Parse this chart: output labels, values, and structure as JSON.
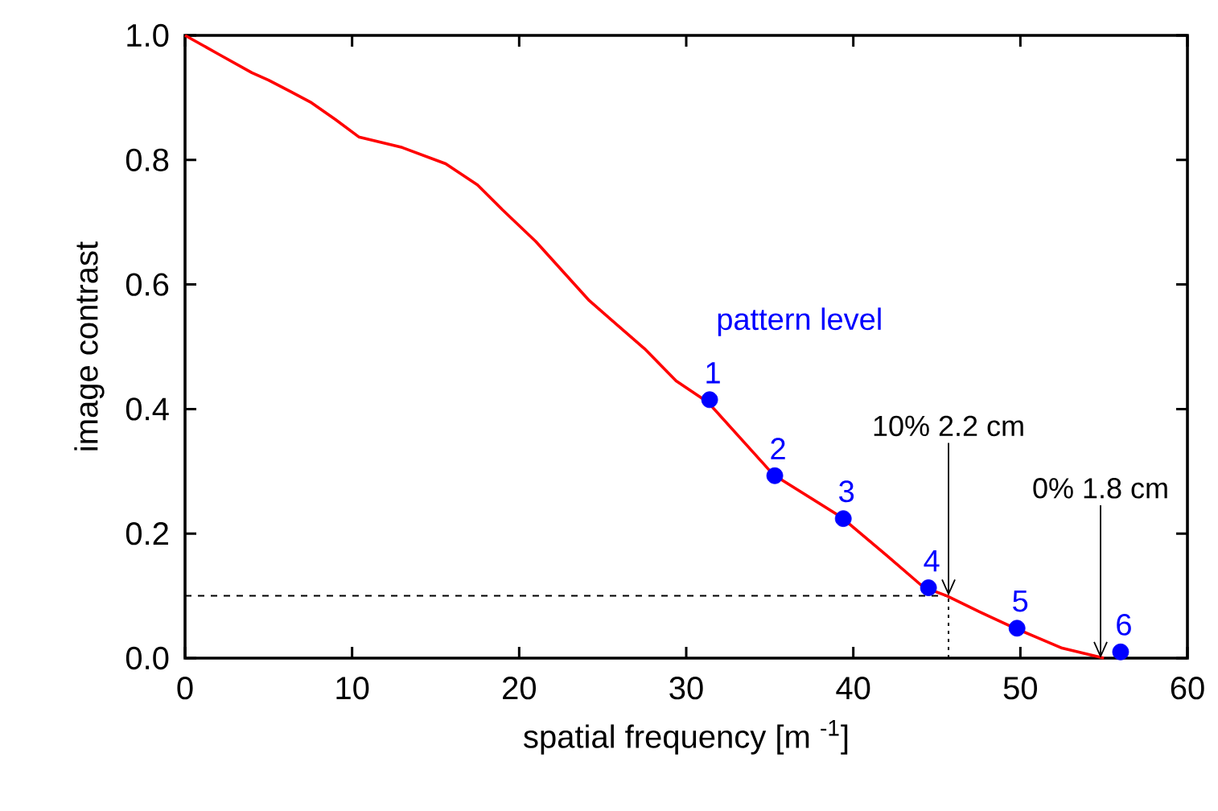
{
  "chart_data": {
    "type": "line",
    "xlabel": "spatial frequency [m $^{-1}$]",
    "ylabel": "image contrast",
    "xlim": [
      0,
      60
    ],
    "xticks": [
      0,
      10,
      20,
      30,
      40,
      50,
      60
    ],
    "ylim": [
      0,
      1
    ],
    "yticks": [
      {
        "value": 0,
        "label": "0.0"
      },
      {
        "value": 0.2,
        "label": "0.2"
      },
      {
        "value": 0.4,
        "label": "0.4"
      },
      {
        "value": 0.6,
        "label": "0.6"
      },
      {
        "value": 0.8,
        "label": "0.8"
      },
      {
        "value": 1,
        "label": "1.0"
      }
    ],
    "grid": false,
    "series": [
      {
        "color": "#ff0000",
        "marker": "none",
        "x": [
          0,
          2,
          4,
          5,
          6.3,
          7.5,
          9,
          10.4,
          13,
          15.6,
          17.5,
          19,
          21,
          24.2,
          27.5,
          29.4,
          31.3,
          35.2,
          39.3,
          42,
          44.2,
          45.6,
          47.5,
          49.6,
          51,
          52.5,
          54.4,
          55
        ],
        "values": [
          1,
          0.97,
          0.94,
          0.928,
          0.91,
          0.893,
          0.865,
          0.837,
          0.82,
          0.794,
          0.76,
          0.72,
          0.669,
          0.574,
          0.497,
          0.445,
          0.411,
          0.295,
          0.226,
          0.165,
          0.114,
          0.1,
          0.075,
          0.049,
          0.033,
          0.016,
          0.004,
          0
        ]
      },
      {
        "type": "scatter",
        "color": "#0000ff",
        "marker": "circle",
        "x": [
          31.4,
          35.3,
          39.4,
          44.5,
          49.8,
          56
        ],
        "values": [
          0.415,
          0.293,
          0.224,
          0.113,
          0.048,
          0.01
        ]
      }
    ],
    "ref_lines": [
      {
        "axis": "y",
        "value": 0.1,
        "line_style": "dashed"
      },
      {
        "axis": "x",
        "value": 45.7,
        "line_style": "dotted"
      }
    ],
    "annotations": [
      "pattern level",
      {
        "text": "1",
        "x": 31.4,
        "y": 0.415
      },
      {
        "text": "2",
        "x": 35.3,
        "y": 0.293
      },
      {
        "text": "3",
        "x": 39.4,
        "y": 0.224
      },
      {
        "text": "4",
        "x": 44.5,
        "y": 0.113
      },
      {
        "text": "5",
        "x": 49.8,
        "y": 0.048
      },
      {
        "text": "6",
        "x": 56,
        "y": 0.01
      },
      {
        "text": "10% 2.2 cm",
        "x": 45.7,
        "y": 0.1
      },
      {
        "text": "0% 1.8 cm",
        "x": 54.8,
        "y": 0
      }
    ]
  }
}
